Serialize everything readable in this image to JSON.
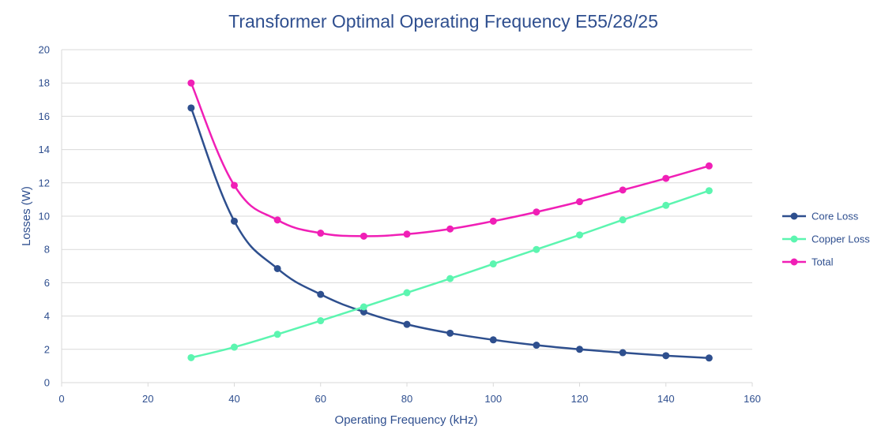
{
  "chart_data": {
    "type": "line",
    "title": "Transformer Optimal Operating Frequency E55/28/25",
    "xlabel": "Operating Frequency (kHz)",
    "ylabel": "Losses (W)",
    "xlim": [
      0,
      160
    ],
    "ylim": [
      0,
      20
    ],
    "xticks": [
      0,
      20,
      40,
      60,
      80,
      100,
      120,
      140,
      160
    ],
    "yticks": [
      0,
      2,
      4,
      6,
      8,
      10,
      12,
      14,
      16,
      18,
      20
    ],
    "grid": "horizontal",
    "smooth": true,
    "legend_position": "right",
    "x": [
      30,
      40,
      50,
      60,
      70,
      80,
      90,
      100,
      110,
      120,
      130,
      140,
      150
    ],
    "series": [
      {
        "name": "Core Loss",
        "color": "#2e4f8e",
        "values": [
          16.5,
          9.7,
          6.85,
          5.3,
          4.25,
          3.5,
          2.97,
          2.57,
          2.25,
          2.0,
          1.8,
          1.62,
          1.48
        ]
      },
      {
        "name": "Copper Loss",
        "color": "#5cf5b0",
        "values": [
          1.5,
          2.13,
          2.9,
          3.72,
          4.55,
          5.4,
          6.25,
          7.13,
          8.0,
          8.87,
          9.78,
          10.65,
          11.53
        ]
      },
      {
        "name": "Total",
        "color": "#f01fb6",
        "values": [
          18.0,
          11.85,
          9.77,
          8.98,
          8.8,
          8.92,
          9.23,
          9.7,
          10.25,
          10.87,
          11.57,
          12.27,
          13.02
        ]
      }
    ]
  }
}
